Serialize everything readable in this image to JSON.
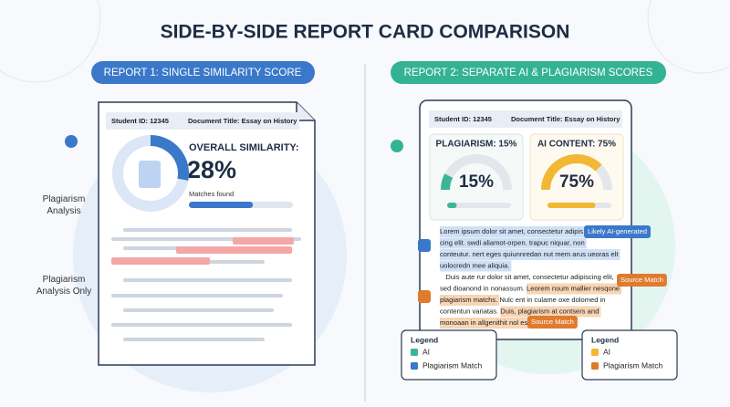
{
  "title": "SIDE-BY-SIDE REPORT CARD COMPARISON",
  "report1": {
    "heading": "REPORT 1: SINGLE SIMILARITY SCORE",
    "student_id": "Student ID: 12345",
    "document_title": "Document Title: Essay on History",
    "score_label": "OVERALL SIMILARITY:",
    "score": 28,
    "score_text": "28%",
    "matches": "Matches found",
    "side_labels": [
      "Plagiarism Analysis",
      "Plagiarism Analysis Only"
    ]
  },
  "report2": {
    "heading": "REPORT 2: SEPARATE AI & PLAGIARISM SCORES",
    "student_id": "Student ID: 12345",
    "document_title": "Document Title: Essay on History",
    "plagiarism": {
      "label": "PLAGIARISM: 15%",
      "value": 15,
      "value_text": "15%",
      "color": "#3bb59a"
    },
    "ai": {
      "label": "AI CONTENT: 75%",
      "value": 75,
      "value_text": "75%",
      "color": "#f2b733"
    },
    "paragraph": [
      [
        {
          "text": "Lorem ipsum dolor sit amet, consectetur adipis",
          "highlight": "ai"
        }
      ],
      [
        {
          "text": "cing elit. swdi aliamot-orpen. trapuc niquar, non",
          "highlight": "ai"
        }
      ],
      [
        {
          "text": "conteutur. nert eges quiunnredan nut mem arus ueoras elt",
          "highlight": "ai"
        }
      ],
      [
        {
          "text": "uolocredn mee aliquia.",
          "highlight": "ai"
        }
      ],
      [
        {
          "text": "   Duis aute rur dolor sit amet, consectetur adipiscing elit,"
        }
      ],
      [
        {
          "text": "sed dioanond in nonassum. "
        },
        {
          "text": "Leorem nsum mallier nesqone",
          "highlight": "plag"
        }
      ],
      [
        {
          "text": "plagiarism matchs.",
          "highlight": "plag"
        },
        {
          "text": " Nulc ent in culame oxe dolomed in"
        }
      ],
      [
        {
          "text": "contentun variatas. "
        },
        {
          "text": "Duis, plagiarism at contsers and",
          "highlight": "plag"
        }
      ],
      [
        {
          "text": "monoaan in allgenithit nol esse cilur.",
          "highlight": "plag"
        }
      ]
    ],
    "tags": [
      "Likely AI-generated",
      "Source Match",
      "Source Match"
    ],
    "legends": [
      {
        "title": "Legend",
        "items": [
          {
            "label": "AI",
            "color": "#3bb59a"
          },
          {
            "label": "Plagiarism Match",
            "color": "#3a78c9"
          }
        ]
      },
      {
        "title": "Legend",
        "items": [
          {
            "label": "AI",
            "color": "#f2b733"
          },
          {
            "label": "Plagiarism Match",
            "color": "#e07a2e"
          }
        ]
      }
    ]
  }
}
